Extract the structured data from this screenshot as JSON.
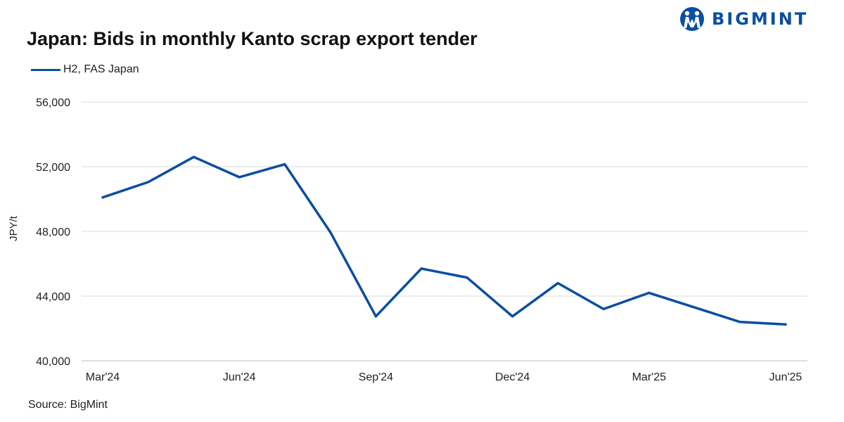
{
  "brand": {
    "name": "BIGMINT",
    "logo_icon": "bigmint-globe-icon",
    "color": "#0a4ea1"
  },
  "chart_data": {
    "type": "line",
    "title": "Japan: Bids in monthly Kanto scrap export tender",
    "ylabel": "JPY/t",
    "xlabel": "",
    "ylim": [
      40000,
      56000
    ],
    "yticks": [
      40000,
      44000,
      48000,
      52000,
      56000
    ],
    "ytick_labels": [
      "40,000",
      "44,000",
      "48,000",
      "52,000",
      "56,000"
    ],
    "categories": [
      "Mar'24",
      "Apr'24",
      "May'24",
      "Jun'24",
      "Jul'24",
      "Aug'24",
      "Sep'24",
      "Oct'24",
      "Nov'24",
      "Dec'24",
      "Jan'25",
      "Feb'25",
      "Mar'25",
      "Apr'25",
      "May'25",
      "Jun'25"
    ],
    "xtick_labels": [
      "Mar'24",
      "Jun'24",
      "Sep'24",
      "Dec'24",
      "Mar'25",
      "Jun'25"
    ],
    "xtick_indices": [
      0,
      3,
      6,
      9,
      12,
      15
    ],
    "series": [
      {
        "name": "H2, FAS Japan",
        "color": "#0a4ea1",
        "values": [
          50100,
          51050,
          52600,
          51350,
          52150,
          47950,
          42750,
          45700,
          45150,
          42750,
          44800,
          43200,
          44200,
          43300,
          42400,
          42250
        ]
      }
    ],
    "grid": true,
    "legend_position": "top-left",
    "source": "Source: BigMint"
  }
}
